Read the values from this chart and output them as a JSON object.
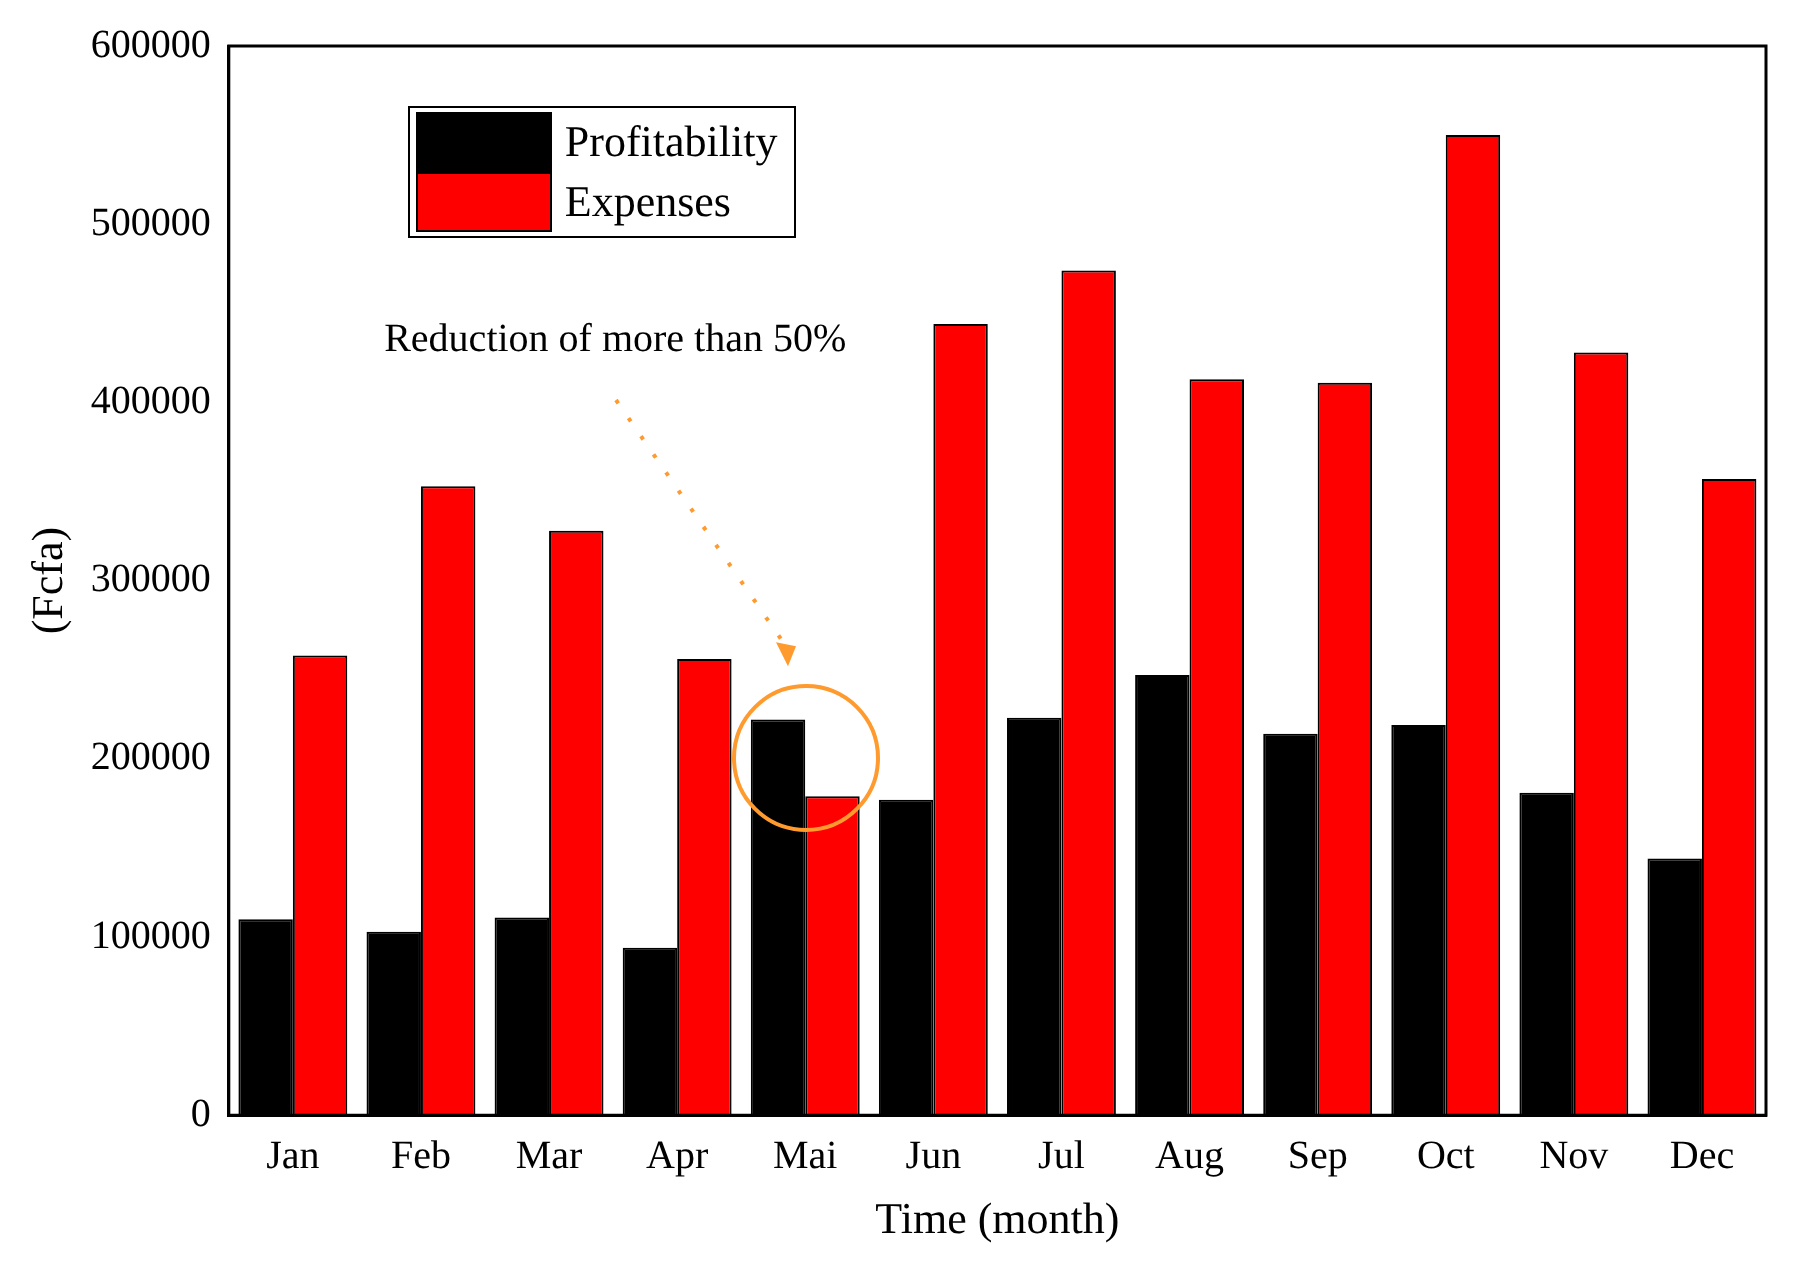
{
  "chart_data": {
    "type": "bar",
    "xlabel": "Time (month)",
    "ylabel": "(Fcfa)",
    "categories": [
      "Jan",
      "Feb",
      "Mar",
      "Apr",
      "Mai",
      "Jun",
      "Jul",
      "Aug",
      "Sep",
      "Oct",
      "Nov",
      "Dec"
    ],
    "series": [
      {
        "name": "Profitability",
        "color": "#000000",
        "values": [
          110000,
          103000,
          111000,
          94000,
          222000,
          177000,
          223000,
          247000,
          214000,
          219000,
          181000,
          144000
        ]
      },
      {
        "name": "Expenses",
        "color": "#ff0000",
        "values": [
          258000,
          353000,
          328000,
          256000,
          179000,
          444000,
          474000,
          413000,
          411000,
          550000,
          428000,
          357000
        ]
      }
    ],
    "ylim": [
      0,
      600000
    ],
    "yticks": [
      0,
      100000,
      200000,
      300000,
      400000,
      500000,
      600000
    ],
    "grid": false,
    "legend": "top left",
    "annotations": [
      "Reduction of more than 50%"
    ]
  }
}
